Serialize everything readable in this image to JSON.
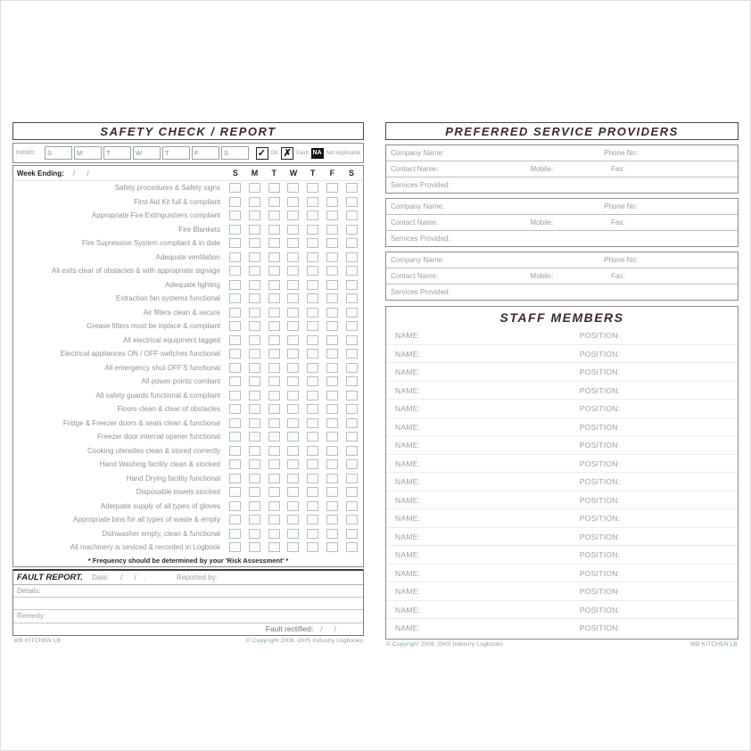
{
  "left_page": {
    "title": "SAFETY CHECK / REPORT",
    "initials_label": "Initials:",
    "days": [
      "S",
      "M",
      "T",
      "W",
      "T",
      "F",
      "S"
    ],
    "legend": {
      "ok_mark": "✓",
      "ok_label": "OK",
      "fault_mark": "✗",
      "fault_label": "Fault",
      "na_label": "NA",
      "na_text": "Not Applicable"
    },
    "week_ending_label": "Week Ending:",
    "week_ending_value": "/      /",
    "checklist_items": [
      "Safety procedures & Safety signs",
      "First Aid Kit full & compliant",
      "Appropriate Fire Extinguishers compliant",
      "Fire Blankets",
      "Fire Supression System compliant & in date",
      "Adequate ventilation",
      "All exits clear of obstacles & with appropriate signage",
      "Adequate lighting",
      "Extraction fan systems functional",
      "Air filters clean & secure",
      "Grease filters must be inplace & compliant",
      "All electrical equipment tagged",
      "Electrical appliances ON / OFF switches functional",
      "All emergency shut OFF'S functional",
      "All power points comliant",
      "All safety guards functional & compliant",
      "Floors clean & clear of obstacles",
      "Fridge & Freezer doors & seals clean & functional",
      "Freezer door internal opener functional",
      "Cooking utensiles clean & stored correctly",
      "Hand Washing facility clean & stocked",
      "Hand Drying facility functional",
      "Disposable towels stocked",
      "Adequate supply of all types of gloves",
      "Appropriate bins for all types of waste & empty",
      "Dishwasher empty, clean & functional",
      "All machinery is seviced & recorded in Logbook"
    ],
    "note": "* Frequency should be determined by your 'Risk Assessment' *",
    "fault_report": {
      "title": "FAULT REPORT.",
      "date_label": "Date:",
      "date_value": "/      /    .",
      "reported_by_label": "Reported by:",
      "details_label": "Details:",
      "remedy_label": "Remedy:",
      "rectified_label": "Fault rectified:",
      "rectified_value": "/      /"
    },
    "footer_left": "WB KITCHEN LB",
    "footer_right": "© Copyright 2006. OHS Industry Logbooks"
  },
  "right_page": {
    "title": "PREFERRED SERVICE PROVIDERS",
    "provider_count": 3,
    "provider_fields": {
      "company_label": "Company Name:",
      "phone_label": "Phone No:",
      "contact_label": "Contact Name:",
      "mobile_label": "Mobile:",
      "fax_label": "Fax:",
      "services_label": "Services Provided:"
    },
    "staff": {
      "title": "STAFF MEMBERS",
      "row_count": 17,
      "name_label": "NAME:",
      "position_label": "POSITION:"
    },
    "footer_left": "© Copyright 2006. OHS Industry Logbooks",
    "footer_right": "WB KITCHEN LB"
  },
  "colors": {
    "title_ink": "#3d2a2a",
    "label_gray": "#9aa0a0",
    "item_gray": "#8f9494",
    "box_border": "#b5c0c0",
    "footer_teal": "#85a0a0"
  }
}
